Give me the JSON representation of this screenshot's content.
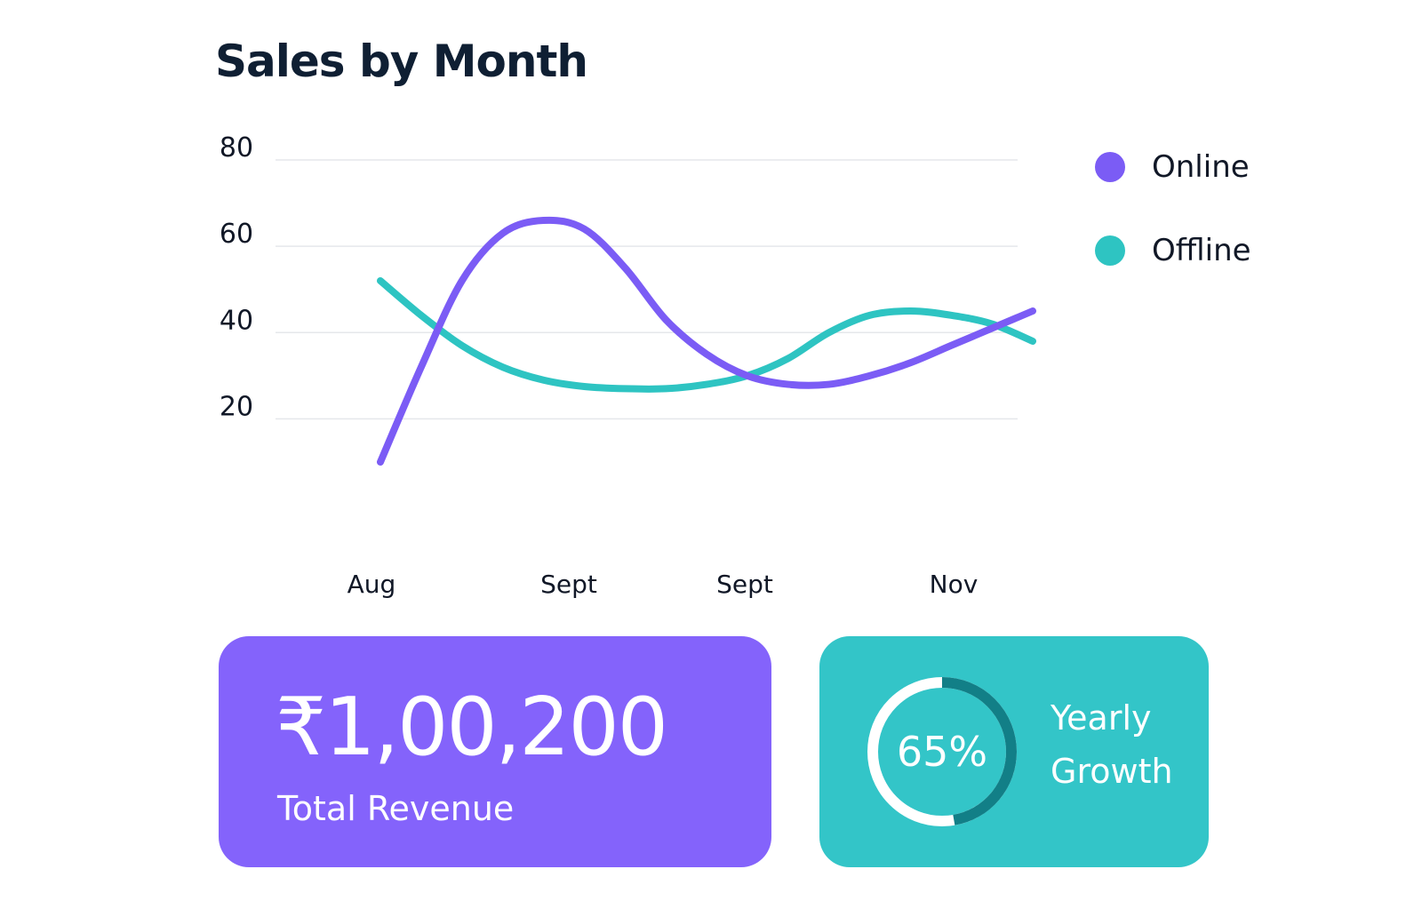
{
  "colors": {
    "online": "#7b5cf5",
    "offline": "#2ec4c2",
    "revenue_card": "#8463fb",
    "growth_card": "#33c5c8",
    "ring_dark": "#127f87",
    "ring_light": "#ffffff"
  },
  "chart_data": {
    "type": "line",
    "title": "Sales by Month",
    "categories": [
      "Aug",
      "Sept",
      "Sept",
      "Nov"
    ],
    "ylim": [
      10,
      80
    ],
    "yticks": [
      20,
      40,
      60,
      80
    ],
    "grid": true,
    "legend_position": "right",
    "series": [
      {
        "name": "Online",
        "color": "#7b5cf5",
        "x": [
          0,
          1,
          2,
          3,
          4,
          5,
          6,
          7,
          8,
          9,
          10,
          11,
          12,
          13,
          14,
          15,
          16
        ],
        "values": [
          10,
          32,
          52,
          63,
          66,
          64,
          55,
          43,
          35,
          30,
          28,
          28,
          30,
          33,
          37,
          41,
          45
        ]
      },
      {
        "name": "Offline",
        "color": "#2ec4c2",
        "x": [
          0,
          1,
          2,
          3,
          4,
          5,
          6,
          7,
          8,
          9,
          10,
          11,
          12,
          13,
          14,
          15,
          16
        ],
        "values": [
          52,
          44,
          37,
          32,
          29,
          27.5,
          27,
          27,
          28,
          30,
          34,
          40,
          44,
          45,
          44,
          42,
          38
        ]
      }
    ]
  },
  "legend": [
    {
      "label": "Online",
      "color": "#7b5cf5"
    },
    {
      "label": "Offline",
      "color": "#2ec4c2"
    }
  ],
  "revenue": {
    "value": "₹1,00,200",
    "label": "Total Revenue"
  },
  "growth": {
    "percent_text": "65%",
    "percent": 65,
    "label": "Yearly Growth"
  }
}
